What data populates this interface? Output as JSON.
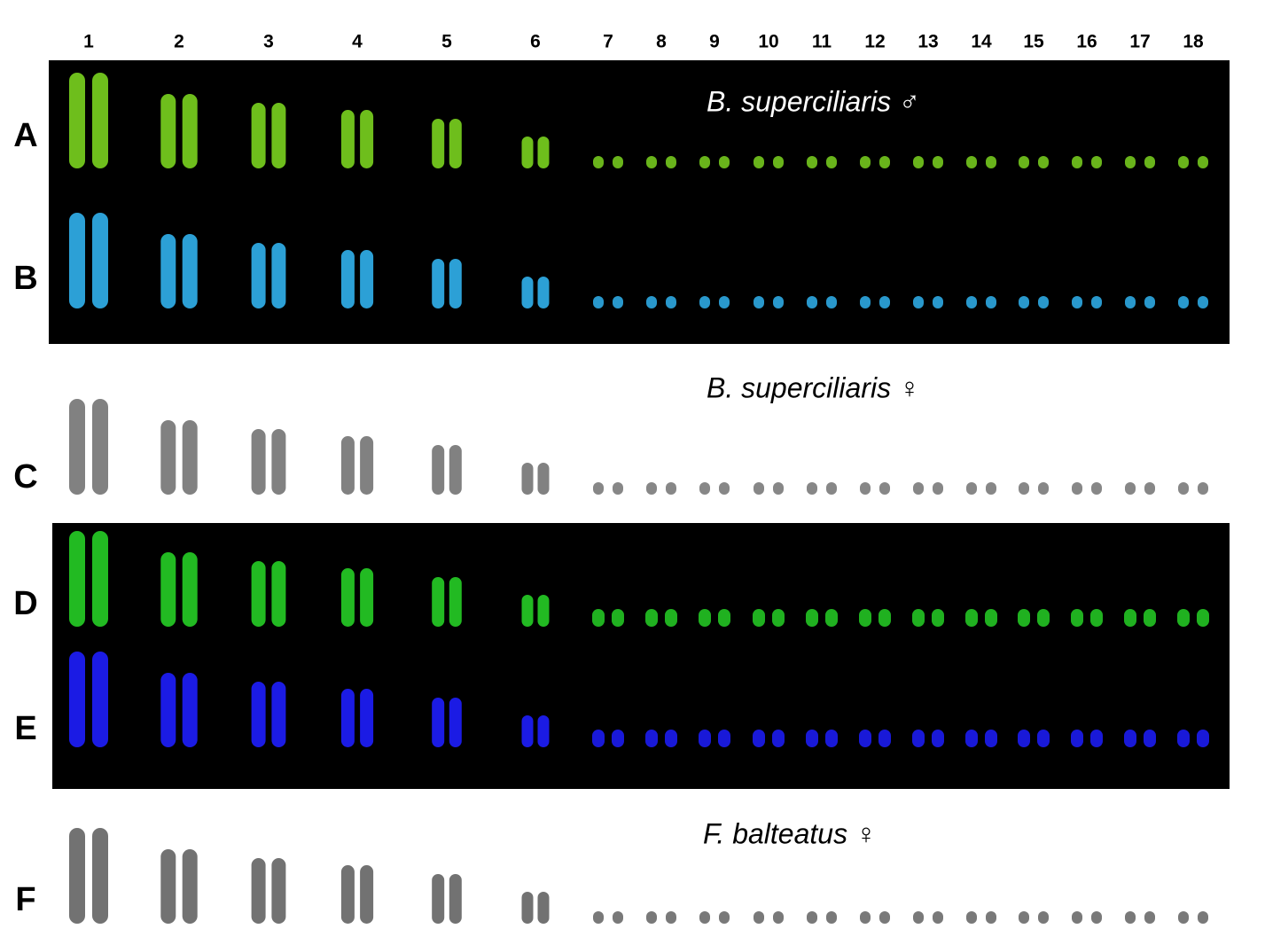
{
  "columns": [
    "1",
    "2",
    "3",
    "4",
    "5",
    "6",
    "7",
    "8",
    "9",
    "10",
    "11",
    "12",
    "13",
    "14",
    "15",
    "16",
    "17",
    "18"
  ],
  "rows": [
    "A",
    "B",
    "C",
    "D",
    "E",
    "F"
  ],
  "species_labels": [
    "B. superciliaris ♂",
    "B. superciliaris ♀",
    "F. balteatus ♀"
  ]
}
